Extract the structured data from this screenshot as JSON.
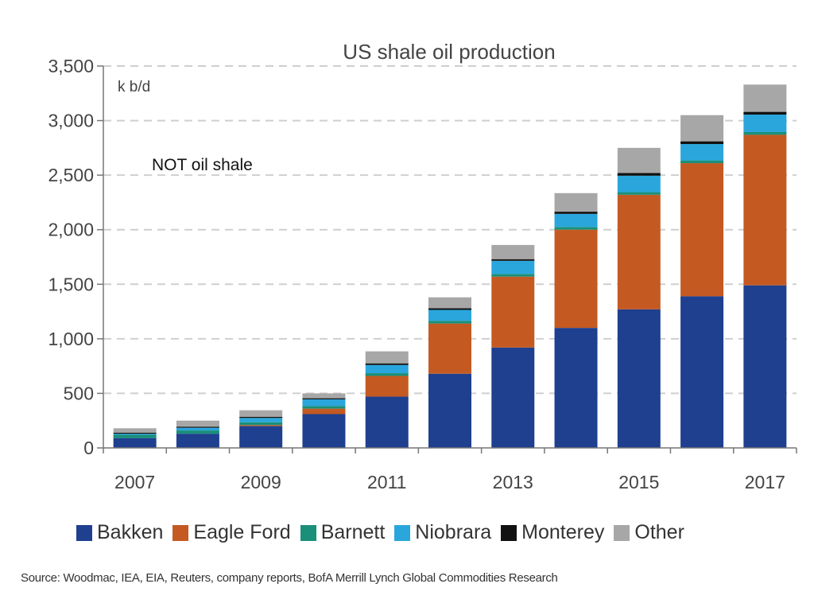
{
  "chart_data": {
    "type": "bar",
    "stacked": true,
    "title": "US shale oil production",
    "unit_label": "k b/d",
    "note": "NOT oil shale",
    "x": [
      2007,
      2008,
      2009,
      2010,
      2011,
      2012,
      2013,
      2014,
      2015,
      2016,
      2017
    ],
    "x_tick_labels": [
      "2007",
      "2009",
      "2011",
      "2013",
      "2015",
      "2017"
    ],
    "ylim": [
      0,
      3500
    ],
    "y_ticks": [
      0,
      500,
      1000,
      1500,
      2000,
      2500,
      3000,
      3500
    ],
    "y_tick_labels": [
      "0",
      "500",
      "1,000",
      "1,500",
      "2,000",
      "2,500",
      "3,000",
      "3,500"
    ],
    "grid": "horizontal-dashed",
    "legend_position": "bottom",
    "series": [
      {
        "name": "Bakken",
        "color": "#1f3f8f",
        "values": [
          90,
          130,
          200,
          310,
          470,
          680,
          920,
          1100,
          1270,
          1390,
          1490
        ]
      },
      {
        "name": "Eagle Ford",
        "color": "#c45a22",
        "values": [
          0,
          0,
          10,
          50,
          190,
          460,
          650,
          900,
          1050,
          1220,
          1380
        ]
      },
      {
        "name": "Barnett",
        "color": "#1a8f7a",
        "values": [
          30,
          30,
          25,
          25,
          25,
          25,
          25,
          25,
          25,
          25,
          25
        ]
      },
      {
        "name": "Niobrara",
        "color": "#2aa6dc",
        "values": [
          10,
          25,
          40,
          60,
          75,
          100,
          120,
          120,
          150,
          150,
          160
        ]
      },
      {
        "name": "Monterey",
        "color": "#111111",
        "values": [
          10,
          10,
          10,
          10,
          15,
          15,
          15,
          20,
          25,
          25,
          25
        ]
      },
      {
        "name": "Other",
        "color": "#a7a7a7",
        "values": [
          40,
          55,
          60,
          45,
          110,
          100,
          130,
          170,
          230,
          240,
          250
        ]
      }
    ]
  },
  "source": "Source: Woodmac, IEA, EIA, Reuters, company reports, BofA Merrill Lynch Global Commodities Research"
}
